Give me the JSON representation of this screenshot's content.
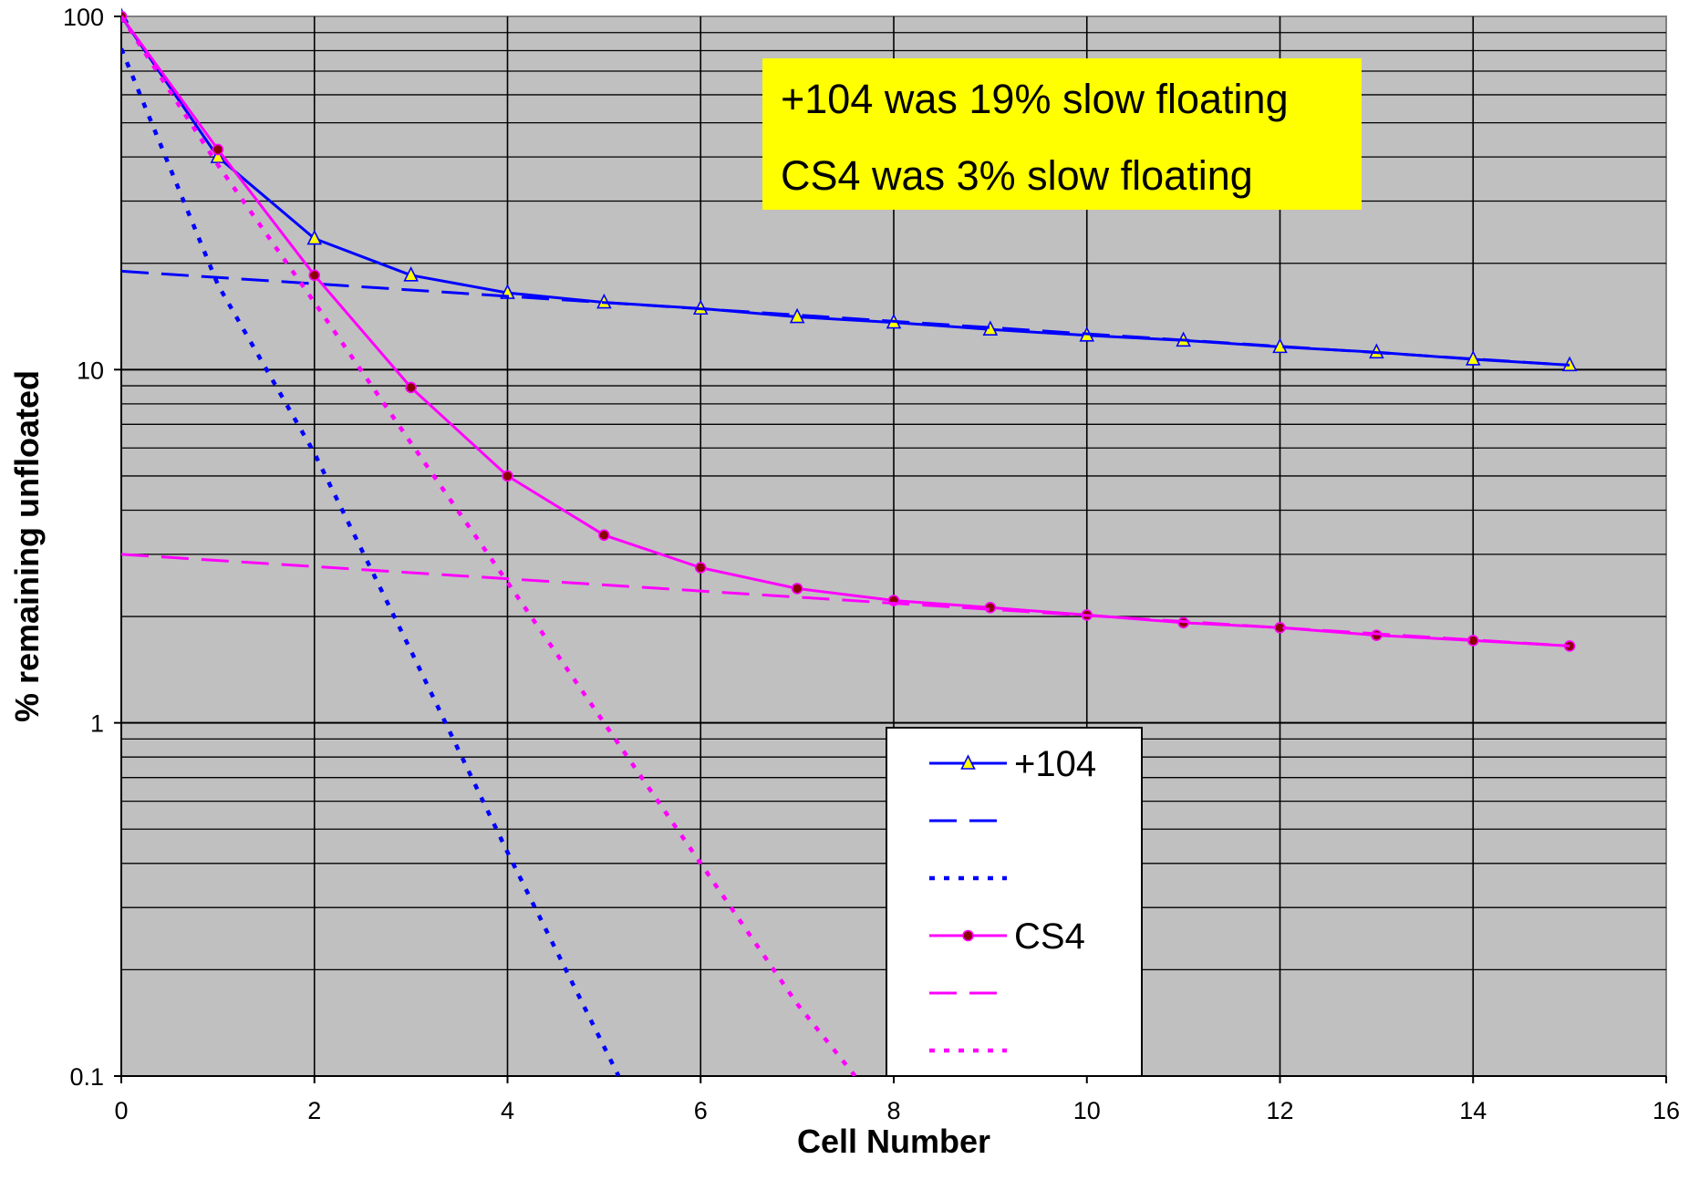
{
  "chart_data": {
    "type": "line",
    "xlabel": "Cell Number",
    "ylabel": "% remaining unfloated",
    "xlim": [
      0,
      16
    ],
    "ylim": [
      0.1,
      100
    ],
    "yscale": "log",
    "x_ticks": [
      "0",
      "2",
      "4",
      "6",
      "8",
      "10",
      "12",
      "14",
      "16"
    ],
    "y_ticks": [
      "0.1",
      "1",
      "10",
      "100"
    ],
    "grid": true,
    "background": "#c0c0c0",
    "legend_position": "bottom-center",
    "annotations": [
      "+104 was 19% slow floating",
      "CS4 was 3% slow floating"
    ],
    "series": [
      {
        "name": "+104",
        "style": "solid",
        "marker": "triangle",
        "color": "#0000ff",
        "marker_fill": "#ffff00",
        "x": [
          0,
          1,
          2,
          3,
          4,
          5,
          6,
          7,
          8,
          9,
          10,
          11,
          12,
          13,
          14,
          15
        ],
        "y": [
          100,
          40,
          23.5,
          18.5,
          16.5,
          15.5,
          14.9,
          14.1,
          13.6,
          13.0,
          12.5,
          12.1,
          11.6,
          11.2,
          10.7,
          10.3
        ]
      },
      {
        "style": "dashed",
        "color": "#0000ff",
        "x": [
          0,
          15
        ],
        "y": [
          19,
          10.3
        ]
      },
      {
        "style": "dotted",
        "color": "#0000ff",
        "x": [
          0,
          1,
          2,
          3,
          4,
          5.15
        ],
        "y": [
          81,
          17.4,
          5.8,
          1.6,
          0.43,
          0.1
        ]
      },
      {
        "name": "CS4",
        "style": "solid",
        "marker": "circle",
        "color": "#ff00ff",
        "marker_fill": "#8b0000",
        "x": [
          0,
          1,
          2,
          3,
          4,
          5,
          6,
          7,
          8,
          9,
          10,
          11,
          12,
          13,
          14,
          15
        ],
        "y": [
          100,
          42,
          18.5,
          8.9,
          5.0,
          3.4,
          2.75,
          2.4,
          2.22,
          2.12,
          2.02,
          1.92,
          1.86,
          1.77,
          1.71,
          1.65
        ]
      },
      {
        "style": "dashed",
        "color": "#ff00ff",
        "x": [
          0,
          15
        ],
        "y": [
          3.0,
          1.65
        ]
      },
      {
        "style": "dotted",
        "color": "#ff00ff",
        "x": [
          0,
          1,
          2,
          3,
          4,
          5,
          6,
          7,
          7.6
        ],
        "y": [
          100,
          38,
          15.5,
          6.2,
          2.5,
          1.0,
          0.4,
          0.16,
          0.1
        ]
      }
    ]
  }
}
